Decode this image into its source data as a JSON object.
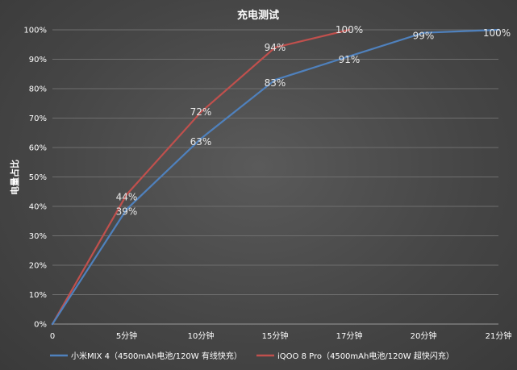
{
  "chart_data": {
    "type": "line",
    "title": "充电测试",
    "ylabel": "电量占比",
    "xlabel": "",
    "categories": [
      "0",
      "5分钟",
      "10分钟",
      "15分钟",
      "17分钟",
      "20分钟",
      "21分钟"
    ],
    "y_ticks": [
      "0%",
      "10%",
      "20%",
      "30%",
      "40%",
      "50%",
      "60%",
      "70%",
      "80%",
      "90%",
      "100%"
    ],
    "ylim": [
      0,
      100
    ],
    "grid": true,
    "legend_position": "bottom",
    "series": [
      {
        "name": "小米MIX 4（4500mAh电池/120W 有线快充）",
        "color": "#4f81bd",
        "values": [
          0,
          39,
          63,
          83,
          91,
          99,
          100
        ],
        "labels": [
          "",
          "39%",
          "63%",
          "83%",
          "91%",
          "99%",
          "100%"
        ]
      },
      {
        "name": "iQOO 8 Pro（4500mAh电池/120W 超快闪充）",
        "color": "#c0504d",
        "values": [
          0,
          44,
          72,
          94,
          100,
          null,
          null
        ],
        "labels": [
          "",
          "44%",
          "72%",
          "94%",
          "100%",
          "",
          ""
        ]
      }
    ]
  }
}
